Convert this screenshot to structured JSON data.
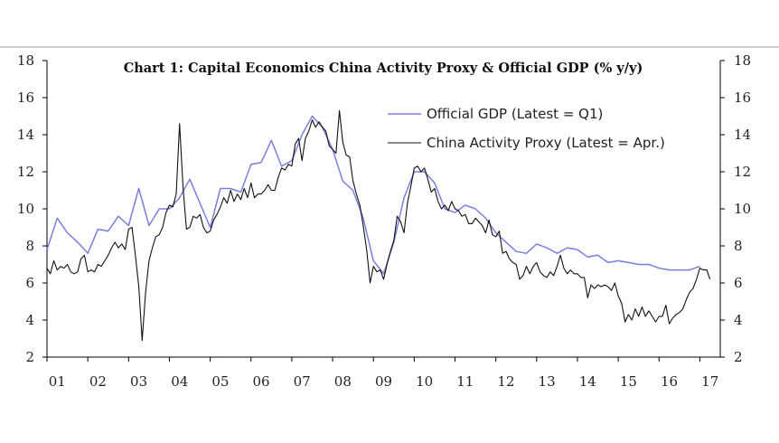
{
  "chart_data": {
    "type": "line",
    "title": "Chart 1: Capital Economics China Activity Proxy & Official GDP (% y/y)",
    "xlabel": "",
    "ylabel": "",
    "x_tick_labels": [
      "01",
      "02",
      "03",
      "04",
      "05",
      "06",
      "07",
      "08",
      "09",
      "10",
      "11",
      "12",
      "13",
      "14",
      "15",
      "16",
      "17"
    ],
    "y_tick_labels": [
      "2",
      "4",
      "6",
      "8",
      "10",
      "12",
      "14",
      "16",
      "18"
    ],
    "xlim": [
      2001.0,
      2017.5
    ],
    "ylim": [
      2,
      18
    ],
    "grid": false,
    "legend_position": "upper-right",
    "series": [
      {
        "name": "Official GDP (Latest = Q1)",
        "color": "#7b7ee0",
        "x": [
          2001.0,
          2001.25,
          2001.5,
          2001.75,
          2002.0,
          2002.25,
          2002.5,
          2002.75,
          2003.0,
          2003.25,
          2003.5,
          2003.75,
          2004.0,
          2004.25,
          2004.5,
          2004.75,
          2005.0,
          2005.25,
          2005.5,
          2005.75,
          2006.0,
          2006.25,
          2006.5,
          2006.75,
          2007.0,
          2007.25,
          2007.5,
          2007.75,
          2008.0,
          2008.25,
          2008.5,
          2008.75,
          2009.0,
          2009.25,
          2009.5,
          2009.75,
          2010.0,
          2010.25,
          2010.5,
          2010.75,
          2011.0,
          2011.25,
          2011.5,
          2011.75,
          2012.0,
          2012.25,
          2012.5,
          2012.75,
          2013.0,
          2013.25,
          2013.5,
          2013.75,
          2014.0,
          2014.25,
          2014.5,
          2014.75,
          2015.0,
          2015.25,
          2015.5,
          2015.75,
          2016.0,
          2016.25,
          2016.5,
          2016.75,
          2017.0
        ],
        "values": [
          7.8,
          9.5,
          8.7,
          8.2,
          7.6,
          8.9,
          8.8,
          9.6,
          9.1,
          11.1,
          9.1,
          10.0,
          10.0,
          10.6,
          11.6,
          10.3,
          9.0,
          11.1,
          11.1,
          10.9,
          12.4,
          12.5,
          13.7,
          12.3,
          12.6,
          14.0,
          15.0,
          14.4,
          13.2,
          11.5,
          11.0,
          9.5,
          7.2,
          6.5,
          8.2,
          10.6,
          12.0,
          12.0,
          11.4,
          10.0,
          9.8,
          10.2,
          10.0,
          9.5,
          8.7,
          8.2,
          7.7,
          7.6,
          8.1,
          7.9,
          7.6,
          7.9,
          7.8,
          7.4,
          7.5,
          7.1,
          7.2,
          7.1,
          7.0,
          7.0,
          6.8,
          6.7,
          6.7,
          6.7,
          6.9
        ]
      },
      {
        "name": "China Activity Proxy (Latest = Apr.)",
        "color": "#111111",
        "x": [
          2001.0,
          2001.083,
          2001.167,
          2001.25,
          2001.333,
          2001.417,
          2001.5,
          2001.583,
          2001.667,
          2001.75,
          2001.833,
          2001.917,
          2002.0,
          2002.083,
          2002.167,
          2002.25,
          2002.333,
          2002.417,
          2002.5,
          2002.583,
          2002.667,
          2002.75,
          2002.833,
          2002.917,
          2003.0,
          2003.083,
          2003.167,
          2003.25,
          2003.333,
          2003.417,
          2003.5,
          2003.583,
          2003.667,
          2003.75,
          2003.833,
          2003.917,
          2004.0,
          2004.083,
          2004.167,
          2004.25,
          2004.333,
          2004.417,
          2004.5,
          2004.583,
          2004.667,
          2004.75,
          2004.833,
          2004.917,
          2005.0,
          2005.083,
          2005.167,
          2005.25,
          2005.333,
          2005.417,
          2005.5,
          2005.583,
          2005.667,
          2005.75,
          2005.833,
          2005.917,
          2006.0,
          2006.083,
          2006.167,
          2006.25,
          2006.333,
          2006.417,
          2006.5,
          2006.583,
          2006.667,
          2006.75,
          2006.833,
          2006.917,
          2007.0,
          2007.083,
          2007.167,
          2007.25,
          2007.333,
          2007.417,
          2007.5,
          2007.583,
          2007.667,
          2007.75,
          2007.833,
          2007.917,
          2008.0,
          2008.083,
          2008.167,
          2008.25,
          2008.333,
          2008.417,
          2008.5,
          2008.583,
          2008.667,
          2008.75,
          2008.833,
          2008.917,
          2009.0,
          2009.083,
          2009.167,
          2009.25,
          2009.333,
          2009.417,
          2009.5,
          2009.583,
          2009.667,
          2009.75,
          2009.833,
          2009.917,
          2010.0,
          2010.083,
          2010.167,
          2010.25,
          2010.333,
          2010.417,
          2010.5,
          2010.583,
          2010.667,
          2010.75,
          2010.833,
          2010.917,
          2011.0,
          2011.083,
          2011.167,
          2011.25,
          2011.333,
          2011.417,
          2011.5,
          2011.583,
          2011.667,
          2011.75,
          2011.833,
          2011.917,
          2012.0,
          2012.083,
          2012.167,
          2012.25,
          2012.333,
          2012.417,
          2012.5,
          2012.583,
          2012.667,
          2012.75,
          2012.833,
          2012.917,
          2013.0,
          2013.083,
          2013.167,
          2013.25,
          2013.333,
          2013.417,
          2013.5,
          2013.583,
          2013.667,
          2013.75,
          2013.833,
          2013.917,
          2014.0,
          2014.083,
          2014.167,
          2014.25,
          2014.333,
          2014.417,
          2014.5,
          2014.583,
          2014.667,
          2014.75,
          2014.833,
          2014.917,
          2015.0,
          2015.083,
          2015.167,
          2015.25,
          2015.333,
          2015.417,
          2015.5,
          2015.583,
          2015.667,
          2015.75,
          2015.833,
          2015.917,
          2016.0,
          2016.083,
          2016.167,
          2016.25,
          2016.333,
          2016.417,
          2016.5,
          2016.583,
          2016.667,
          2016.75,
          2016.833,
          2016.917,
          2017.0,
          2017.083,
          2017.167,
          2017.25
        ],
        "values": [
          6.8,
          6.5,
          7.2,
          6.7,
          6.9,
          6.8,
          7.0,
          6.6,
          6.5,
          6.6,
          7.3,
          7.5,
          6.6,
          6.7,
          6.6,
          7.0,
          6.9,
          7.2,
          7.5,
          7.9,
          8.2,
          7.9,
          8.1,
          7.8,
          8.9,
          9.0,
          7.5,
          5.8,
          2.9,
          5.5,
          7.2,
          7.9,
          8.5,
          8.6,
          9.0,
          9.8,
          10.2,
          10.1,
          10.8,
          14.6,
          11.2,
          8.9,
          9.0,
          9.6,
          9.5,
          9.7,
          9.0,
          8.7,
          8.8,
          9.4,
          9.7,
          10.1,
          10.6,
          10.3,
          11.0,
          10.4,
          10.8,
          10.5,
          11.1,
          10.6,
          11.4,
          10.6,
          10.8,
          10.8,
          11.0,
          11.3,
          11.0,
          11.0,
          11.7,
          12.2,
          12.1,
          12.4,
          12.3,
          13.5,
          13.8,
          12.6,
          13.8,
          14.2,
          14.8,
          14.4,
          14.7,
          14.4,
          14.2,
          13.4,
          13.2,
          13.0,
          15.3,
          13.6,
          12.9,
          12.8,
          11.5,
          10.8,
          10.2,
          9.1,
          7.8,
          6.0,
          6.9,
          6.6,
          6.7,
          6.2,
          7.0,
          7.7,
          8.3,
          9.6,
          9.3,
          8.7,
          10.3,
          11.2,
          12.2,
          12.3,
          12.0,
          12.2,
          11.6,
          10.9,
          11.1,
          10.4,
          10.0,
          10.2,
          9.9,
          10.4,
          10.0,
          9.9,
          9.6,
          9.7,
          9.2,
          9.2,
          9.5,
          9.3,
          9.1,
          8.7,
          9.4,
          8.6,
          8.5,
          8.8,
          7.6,
          7.7,
          7.3,
          7.1,
          7.0,
          6.2,
          6.4,
          6.9,
          6.5,
          6.9,
          7.1,
          6.6,
          6.4,
          6.3,
          6.6,
          6.4,
          6.9,
          7.5,
          6.8,
          6.5,
          6.7,
          6.5,
          6.5,
          6.3,
          6.3,
          5.2,
          5.9,
          5.7,
          5.9,
          5.8,
          5.9,
          5.8,
          5.6,
          6.0,
          5.3,
          4.9,
          3.9,
          4.3,
          4.0,
          4.6,
          4.2,
          4.7,
          4.2,
          4.5,
          4.2,
          3.9,
          4.2,
          4.2,
          4.8,
          3.8,
          4.1,
          4.3,
          4.4,
          4.6,
          5.1,
          5.5,
          5.7,
          6.2,
          6.8,
          6.7,
          6.7,
          6.2
        ]
      }
    ]
  }
}
